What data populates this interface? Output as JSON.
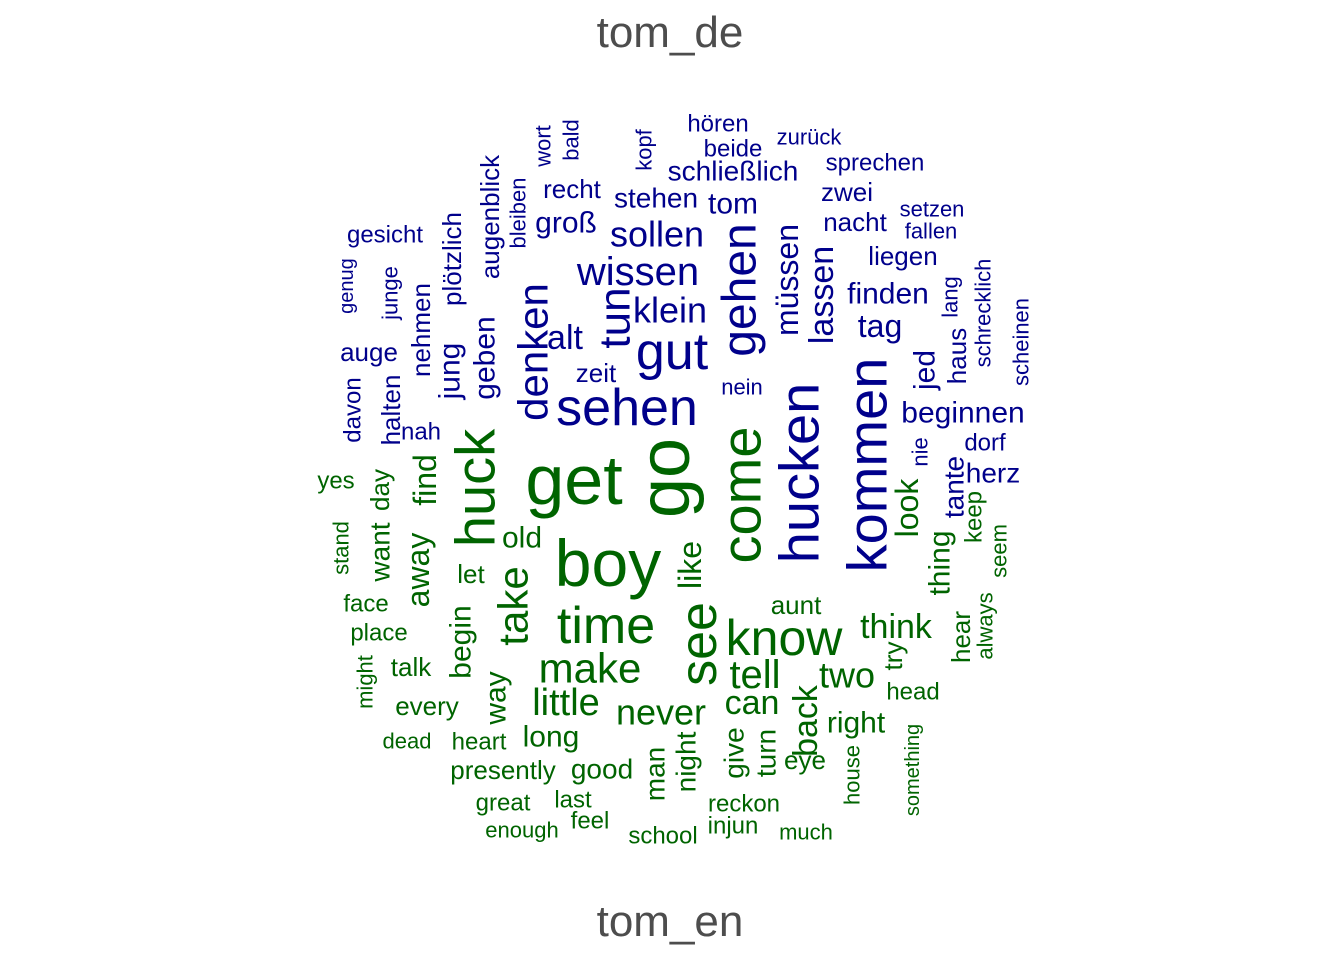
{
  "chart_data": {
    "type": "comparison-wordcloud",
    "groups": [
      {
        "name": "tom_de",
        "color": "#00008B",
        "words": [
          "kommen",
          "hucken",
          "gehen",
          "sehen",
          "gut",
          "denken",
          "wissen",
          "tun",
          "müssen",
          "lassen",
          "klein",
          "sollen",
          "alt",
          "groß",
          "stehen",
          "tom",
          "schließlich",
          "recht",
          "finden",
          "tag",
          "beginnen",
          "jed",
          "nacht",
          "zwei",
          "liegen",
          "haus",
          "lang",
          "schrecklich",
          "scheinen",
          "setzen",
          "fallen",
          "sprechen",
          "zurück",
          "beide",
          "hören",
          "kopf",
          "bald",
          "wort",
          "bleiben",
          "augenblick",
          "plötzlich",
          "jung",
          "geben",
          "nehmen",
          "junge",
          "genug",
          "gesicht",
          "auge",
          "davon",
          "halten",
          "nah",
          "zeit",
          "nein",
          "nie",
          "tante",
          "dorf",
          "herz"
        ]
      },
      {
        "name": "tom_en",
        "color": "#006400",
        "words": [
          "go",
          "get",
          "boy",
          "come",
          "huck",
          "see",
          "know",
          "time",
          "make",
          "take",
          "tell",
          "little",
          "never",
          "like",
          "old",
          "let",
          "begin",
          "find",
          "away",
          "want",
          "day",
          "think",
          "two",
          "look",
          "thing",
          "aunt",
          "can",
          "back",
          "right",
          "long",
          "way",
          "night",
          "man",
          "give",
          "turn",
          "eye",
          "reckon",
          "good",
          "presently",
          "heart",
          "every",
          "talk",
          "place",
          "face",
          "stand",
          "yes",
          "might",
          "dead",
          "great",
          "last",
          "enough",
          "feel",
          "school",
          "injun",
          "much",
          "house",
          "something",
          "head",
          "try",
          "hear",
          "always",
          "seem",
          "keep"
        ]
      }
    ]
  }
}
